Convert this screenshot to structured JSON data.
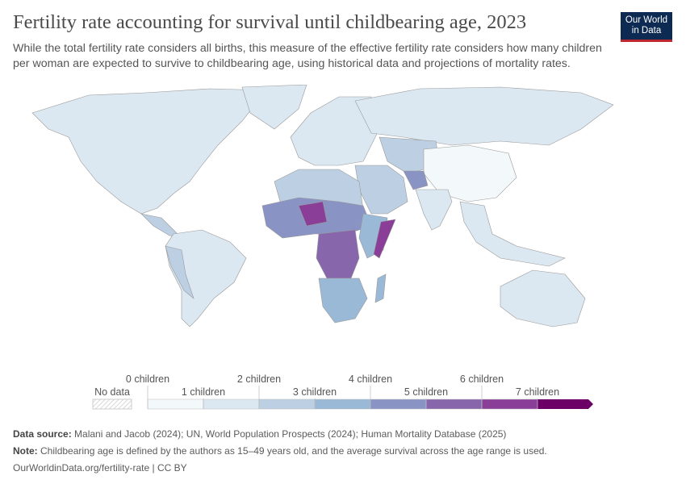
{
  "header": {
    "title": "Fertility rate accounting for survival until childbearing age, 2023",
    "subtitle": "While the total fertility rate considers all births, this measure of the effective fertility rate considers how many children per woman are expected to survive to childbearing age, using historical data and projections of mortality rates.",
    "logo_line1": "Our World",
    "logo_line2": "in Data"
  },
  "legend": {
    "no_data": "No data",
    "bins": [
      {
        "label": "0 children",
        "color": "#f3f8fb"
      },
      {
        "label": "1 children",
        "color": "#dce8f1"
      },
      {
        "label": "2 children",
        "color": "#bdd0e3"
      },
      {
        "label": "3 children",
        "color": "#9ab9d7"
      },
      {
        "label": "4 children",
        "color": "#8994c5"
      },
      {
        "label": "5 children",
        "color": "#8866ab"
      },
      {
        "label": "6 children",
        "color": "#8a3e98"
      },
      {
        "label": "7 children",
        "color": "#6c0067"
      }
    ]
  },
  "footer": {
    "source_label": "Data source:",
    "source": "Malani and Jacob (2024); UN, World Population Prospects (2024); Human Mortality Database (2025)",
    "note_label": "Note:",
    "note": "Childbearing age is defined by the authors as 15–49 years old, and the average survival across the age range is used.",
    "url": "OurWorldinData.org/fertility-rate",
    "license": "CC BY"
  }
}
